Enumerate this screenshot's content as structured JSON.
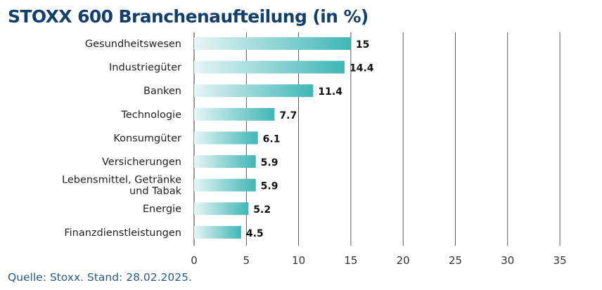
{
  "title": "STOXX 600 Branchenaufteilung (in %)",
  "source": "Quelle: Stoxx. Stand: 28.02.2025.",
  "colors": {
    "title": "#12406b",
    "source": "#2a5d86",
    "bar_start": "#e7f5f5",
    "bar_end": "#3fb6b6",
    "grid": "#333333",
    "axis": "#555555"
  },
  "chart_data": {
    "type": "bar",
    "orientation": "horizontal",
    "categories": [
      "Gesundheitswesen",
      "Industriegüter",
      "Banken",
      "Technologie",
      "Konsumgüter",
      "Versicherungen",
      "Lebensmittel, Getränke und Tabak",
      "Energie",
      "Finanzdienstleistungen"
    ],
    "category_lines": [
      [
        "Gesundheitswesen"
      ],
      [
        "Industriegüter"
      ],
      [
        "Banken"
      ],
      [
        "Technologie"
      ],
      [
        "Konsumgüter"
      ],
      [
        "Versicherungen"
      ],
      [
        "Lebensmittel, Getränke",
        "und Tabak"
      ],
      [
        "Energie"
      ],
      [
        "Finanzdienstleistungen"
      ]
    ],
    "values": [
      15,
      14.4,
      11.4,
      7.7,
      6.1,
      5.9,
      5.9,
      5.2,
      4.5
    ],
    "value_labels": [
      "15",
      "14.4",
      "11.4",
      "7.7",
      "6.1",
      "5.9",
      "5.9",
      "5.2",
      "4.5"
    ],
    "xlim": [
      0,
      35
    ],
    "xticks": [
      0,
      5,
      10,
      15,
      20,
      25,
      30,
      35
    ],
    "grid": "vertical",
    "xlabel": "",
    "ylabel": ""
  }
}
